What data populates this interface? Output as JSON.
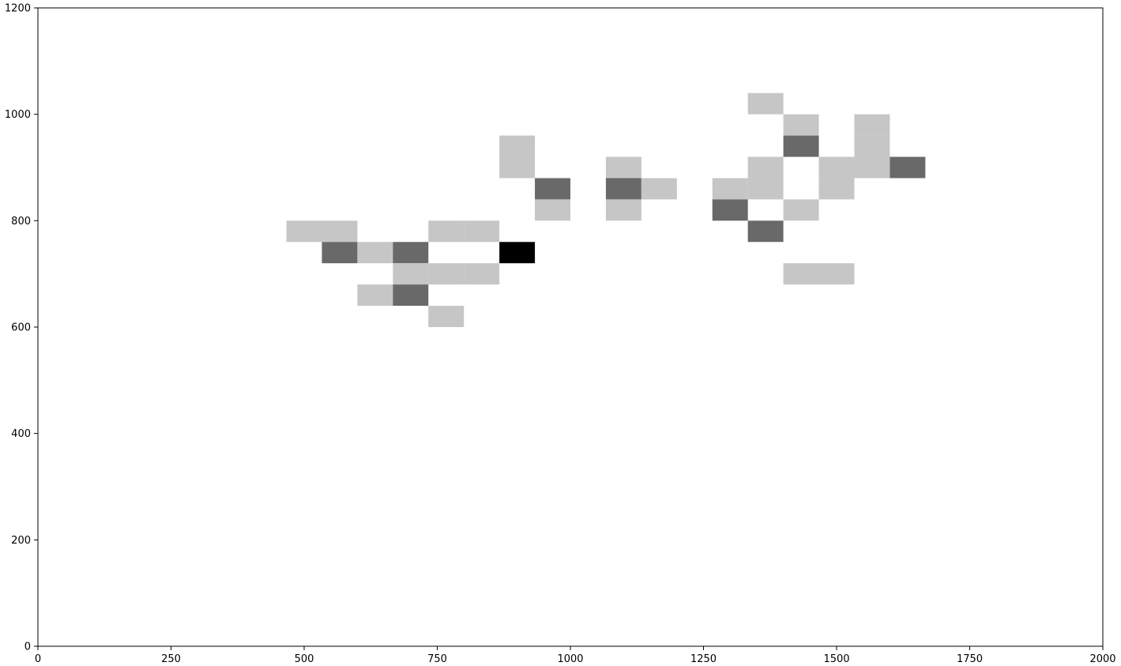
{
  "chart_data": {
    "type": "heatmap",
    "title": "",
    "xlabel": "",
    "ylabel": "",
    "xlim": [
      0,
      2000
    ],
    "ylim": [
      0,
      1200
    ],
    "grid": false,
    "legend": "none",
    "bin_width": 66.67,
    "bin_height": 40,
    "xticks": [
      0,
      250,
      500,
      750,
      1000,
      1250,
      1500,
      1750,
      2000
    ],
    "yticks": [
      0,
      200,
      400,
      600,
      800,
      1000,
      1200
    ],
    "xtick_labels": [
      "0",
      "250",
      "500",
      "750",
      "1000",
      "1250",
      "1500",
      "1750",
      "2000"
    ],
    "ytick_labels": [
      "0",
      "200",
      "400",
      "600",
      "800",
      "1000",
      "1200"
    ],
    "colors": {
      "low": "#c6c6c6",
      "mid": "#696969",
      "high": "#000000",
      "background": "#ffffff"
    },
    "level_colors": [
      "#ffffff",
      "#c6c6c6",
      "#696969",
      "#000000"
    ],
    "cells": [
      {
        "x0": 466.67,
        "y0": 760,
        "level": 1
      },
      {
        "x0": 533.33,
        "y0": 760,
        "level": 1
      },
      {
        "x0": 733.33,
        "y0": 760,
        "level": 1
      },
      {
        "x0": 800.0,
        "y0": 760,
        "level": 1
      },
      {
        "x0": 533.33,
        "y0": 720,
        "level": 2
      },
      {
        "x0": 600.0,
        "y0": 720,
        "level": 1
      },
      {
        "x0": 666.67,
        "y0": 720,
        "level": 2
      },
      {
        "x0": 866.67,
        "y0": 720,
        "level": 3
      },
      {
        "x0": 666.67,
        "y0": 680,
        "level": 1
      },
      {
        "x0": 733.33,
        "y0": 680,
        "level": 1
      },
      {
        "x0": 800.0,
        "y0": 680,
        "level": 1
      },
      {
        "x0": 600.0,
        "y0": 640,
        "level": 1
      },
      {
        "x0": 666.67,
        "y0": 640,
        "level": 2
      },
      {
        "x0": 733.33,
        "y0": 600,
        "level": 1
      },
      {
        "x0": 866.67,
        "y0": 920,
        "level": 1
      },
      {
        "x0": 866.67,
        "y0": 880,
        "level": 1
      },
      {
        "x0": 933.33,
        "y0": 840,
        "level": 2
      },
      {
        "x0": 933.33,
        "y0": 800,
        "level": 1
      },
      {
        "x0": 1066.67,
        "y0": 880,
        "level": 1
      },
      {
        "x0": 1066.67,
        "y0": 840,
        "level": 2
      },
      {
        "x0": 1133.33,
        "y0": 840,
        "level": 1
      },
      {
        "x0": 1066.67,
        "y0": 800,
        "level": 1
      },
      {
        "x0": 1333.33,
        "y0": 1000,
        "level": 1
      },
      {
        "x0": 1400.0,
        "y0": 960,
        "level": 1
      },
      {
        "x0": 1533.33,
        "y0": 960,
        "level": 1
      },
      {
        "x0": 1400.0,
        "y0": 920,
        "level": 2
      },
      {
        "x0": 1533.33,
        "y0": 920,
        "level": 1
      },
      {
        "x0": 1333.33,
        "y0": 880,
        "level": 1
      },
      {
        "x0": 1466.67,
        "y0": 880,
        "level": 1
      },
      {
        "x0": 1533.33,
        "y0": 880,
        "level": 1
      },
      {
        "x0": 1600.0,
        "y0": 880,
        "level": 2
      },
      {
        "x0": 1266.67,
        "y0": 840,
        "level": 1
      },
      {
        "x0": 1333.33,
        "y0": 840,
        "level": 1
      },
      {
        "x0": 1466.67,
        "y0": 840,
        "level": 1
      },
      {
        "x0": 1266.67,
        "y0": 800,
        "level": 2
      },
      {
        "x0": 1400.0,
        "y0": 800,
        "level": 1
      },
      {
        "x0": 1333.33,
        "y0": 760,
        "level": 2
      },
      {
        "x0": 1400.0,
        "y0": 680,
        "level": 1
      },
      {
        "x0": 1466.67,
        "y0": 680,
        "level": 1
      }
    ]
  }
}
